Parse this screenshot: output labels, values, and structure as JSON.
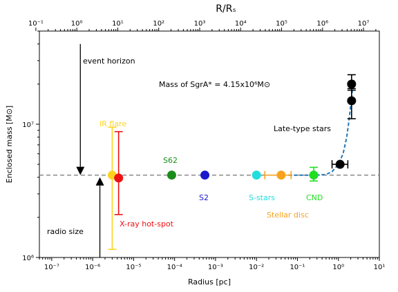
{
  "chart_data": {
    "type": "scatter",
    "title": "",
    "xlabel": "Radius [pc]",
    "ylabel": "Enclosed mass [M⊙]",
    "x_scale": "log",
    "y_scale": "log",
    "xlim": [
      5e-08,
      10
    ],
    "ylim": [
      1000000,
      50000000
    ],
    "x_ticks": [
      {
        "value": 1e-07,
        "label": "10⁻⁷"
      },
      {
        "value": 1e-06,
        "label": "10⁻⁶"
      },
      {
        "value": 1e-05,
        "label": "10⁻⁵"
      },
      {
        "value": 0.0001,
        "label": "10⁻⁴"
      },
      {
        "value": 0.001,
        "label": "10⁻³"
      },
      {
        "value": 0.01,
        "label": "10⁻²"
      },
      {
        "value": 0.1,
        "label": "10⁻¹"
      },
      {
        "value": 1,
        "label": "10⁰"
      },
      {
        "value": 10,
        "label": "10¹"
      }
    ],
    "y_ticks": [
      {
        "value": 1000000,
        "label": "10⁶"
      },
      {
        "value": 10000000,
        "label": "10⁷"
      }
    ],
    "top_axis": {
      "label": "R/Rₛ",
      "pc_per_unit": 4.1e-07,
      "ticks": [
        {
          "value": 0.1,
          "label": "10⁻¹"
        },
        {
          "value": 1,
          "label": "10⁰"
        },
        {
          "value": 10,
          "label": "10¹"
        },
        {
          "value": 100,
          "label": "10²"
        },
        {
          "value": 1000,
          "label": "10³"
        },
        {
          "value": 10000,
          "label": "10⁴"
        },
        {
          "value": 100000,
          "label": "10⁵"
        },
        {
          "value": 1000000,
          "label": "10⁶"
        },
        {
          "value": 10000000,
          "label": "10⁷"
        }
      ]
    },
    "reference_line": {
      "y": 4150000,
      "style": "dashed",
      "color": "#808080"
    },
    "annotation": {
      "text": "Mass of SgrA* = 4.15x10⁶M⊙"
    },
    "arrows": [
      {
        "label": "event horizon",
        "x": 5e-07,
        "from_y": 40000000,
        "to_y": 4150000,
        "direction": "down"
      },
      {
        "label": "radio size",
        "x": 1.5e-06,
        "from_y": 1000000,
        "to_y": 4000000,
        "direction": "up"
      }
    ],
    "series": [
      {
        "name": "IR flare",
        "color": "#ffd21f",
        "points": [
          {
            "x": 3e-06,
            "y": 4150000,
            "y_low": 1150000,
            "y_high": 9500000
          }
        ]
      },
      {
        "name": "X-ray hot-spot",
        "color": "#ee1111",
        "points": [
          {
            "x": 4.3e-06,
            "y": 3950000,
            "y_low": 2100000,
            "y_high": 8800000
          }
        ]
      },
      {
        "name": "S62",
        "color": "#1a8c1a",
        "points": [
          {
            "x": 8.5e-05,
            "y": 4150000
          }
        ]
      },
      {
        "name": "S2",
        "color": "#1a1acc",
        "points": [
          {
            "x": 0.00055,
            "y": 4150000
          }
        ]
      },
      {
        "name": "S-stars",
        "color": "#22dddd",
        "points": [
          {
            "x": 0.01,
            "y": 4150000
          }
        ]
      },
      {
        "name": "Stellar disc",
        "color": "#f7a21f",
        "points": [
          {
            "x": 0.04,
            "y": 4150000,
            "x_low": 0.016,
            "x_high": 0.07
          }
        ]
      },
      {
        "name": "CND",
        "color": "#22dd22",
        "points": [
          {
            "x": 0.25,
            "y": 4150000,
            "y_low": 3750000,
            "y_high": 4750000
          }
        ]
      },
      {
        "name": "Late-type stars",
        "color": "#000000",
        "points": [
          {
            "x": 1.1,
            "y": 5000000,
            "x_low": 0.7,
            "x_high": 1.7
          },
          {
            "x": 2.1,
            "y": 15000000,
            "y_low": 11000000,
            "y_high": 18500000
          },
          {
            "x": 2.1,
            "y": 20000000,
            "y_low": 18000000,
            "y_high": 23500000
          }
        ]
      }
    ],
    "model_curve": {
      "color": "#1f77b4",
      "style": "dashed",
      "points": [
        [
          0.06,
          4150000
        ],
        [
          0.3,
          4150000
        ],
        [
          0.5,
          4200000
        ],
        [
          0.7,
          4400000
        ],
        [
          1.0,
          5000000
        ],
        [
          1.3,
          6000000
        ],
        [
          1.6,
          8000000
        ],
        [
          1.8,
          10500000
        ],
        [
          2.0,
          14000000
        ],
        [
          2.2,
          18000000
        ],
        [
          2.4,
          21500000
        ]
      ]
    }
  }
}
